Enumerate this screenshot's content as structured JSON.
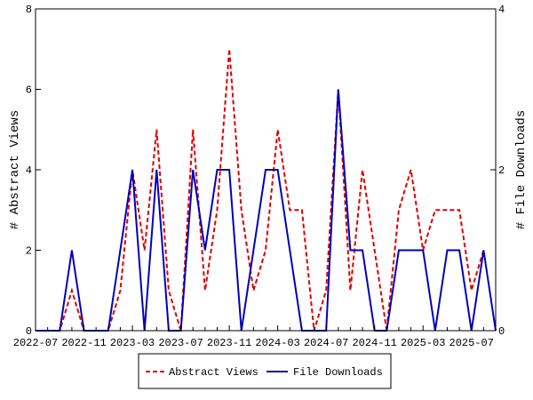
{
  "chart_data": {
    "type": "line",
    "title": "",
    "x": [
      "2022-07",
      "2022-08",
      "2022-09",
      "2022-10",
      "2022-11",
      "2022-12",
      "2023-01",
      "2023-02",
      "2023-03",
      "2023-04",
      "2023-05",
      "2023-06",
      "2023-07",
      "2023-08",
      "2023-09",
      "2023-10",
      "2023-11",
      "2023-12",
      "2024-01",
      "2024-02",
      "2024-03",
      "2024-04",
      "2024-05",
      "2024-06",
      "2024-07",
      "2024-08",
      "2024-09",
      "2024-10",
      "2024-11",
      "2024-12",
      "2025-01",
      "2025-02",
      "2025-03",
      "2025-04",
      "2025-05",
      "2025-06",
      "2025-07",
      "2025-08",
      "2025-09"
    ],
    "xticks": [
      "2022-07",
      "2022-11",
      "2023-03",
      "2023-07",
      "2023-11",
      "2024-03",
      "2024-07",
      "2024-11",
      "2025-03",
      "2025-07"
    ],
    "ylabel": "# Abstract Views",
    "ylabel_right": "# File Downloads",
    "ylim": [
      0,
      8
    ],
    "ylim_right": [
      0,
      4
    ],
    "yticks": [
      "0",
      "2",
      "4",
      "6",
      "8"
    ],
    "yticks_right": [
      "0",
      "2",
      "4"
    ],
    "grid": false,
    "legend_position": "bottom",
    "series": [
      {
        "name": "Abstract Views",
        "axis": "left",
        "color": "#dd0000",
        "style": "dashed",
        "values": [
          0,
          0,
          0,
          1,
          0,
          0,
          0,
          1,
          4,
          2,
          5,
          1,
          0,
          5,
          1,
          3,
          7,
          3,
          1,
          2,
          5,
          3,
          3,
          0,
          1,
          6,
          1,
          4,
          2,
          0,
          3,
          4,
          2,
          3,
          3,
          3,
          1,
          2,
          null
        ]
      },
      {
        "name": "File Downloads",
        "axis": "right",
        "color": "#0000bb",
        "style": "solid",
        "values": [
          0,
          0,
          0,
          1,
          0,
          0,
          0,
          1,
          2,
          0,
          2,
          0,
          0,
          2,
          1,
          2,
          2,
          0,
          1,
          2,
          2,
          1,
          0,
          0,
          0,
          3,
          1,
          1,
          0,
          0,
          1,
          1,
          1,
          0,
          1,
          1,
          0,
          1,
          0
        ]
      }
    ]
  }
}
